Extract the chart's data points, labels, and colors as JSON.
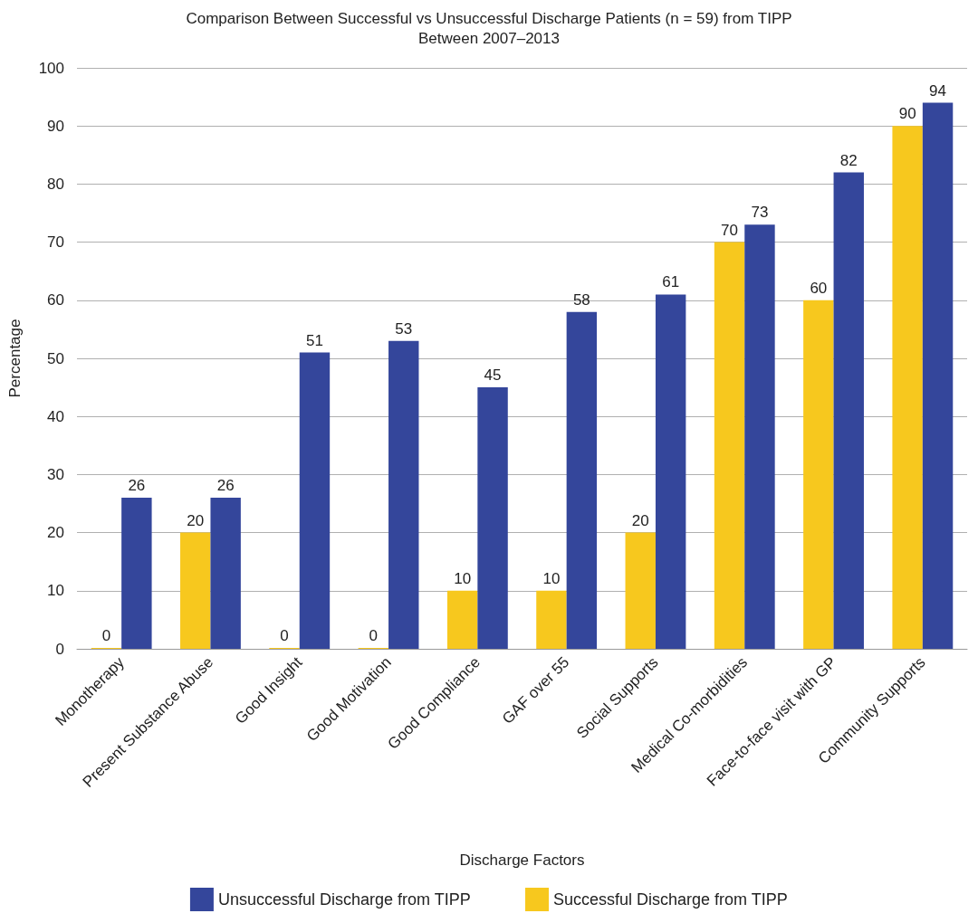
{
  "chart_data": {
    "type": "bar",
    "title": "Comparison Between Successful vs Unsuccessful Discharge Patients (n = 59) from TIPP\nBetween 2007–2013",
    "xlabel": "Discharge Factors",
    "ylabel": "Percentage",
    "categories": [
      "Monotherapy",
      "Present Substance Abuse",
      "Good Insight",
      "Good Motivation",
      "Good Compliance",
      "GAF over 55",
      "Social Supports",
      "Medical Co-morbidities",
      "Face-to-face visit with GP",
      "Community Supports"
    ],
    "series": [
      {
        "name": "Successful Discharge from TIPP",
        "color": "#f7c81e",
        "values": [
          0,
          20,
          0,
          0,
          10,
          10,
          20,
          70,
          60,
          90
        ]
      },
      {
        "name": "Unsuccessful Discharge from TIPP",
        "color": "#34469b",
        "values": [
          26,
          26,
          51,
          53,
          45,
          58,
          61,
          73,
          82,
          94
        ]
      }
    ],
    "ylim": [
      0,
      100
    ],
    "yticks": [
      0,
      10,
      20,
      30,
      40,
      50,
      60,
      70,
      80,
      90,
      100
    ],
    "grid": "y",
    "legend": "bottom",
    "data_labels": true
  }
}
